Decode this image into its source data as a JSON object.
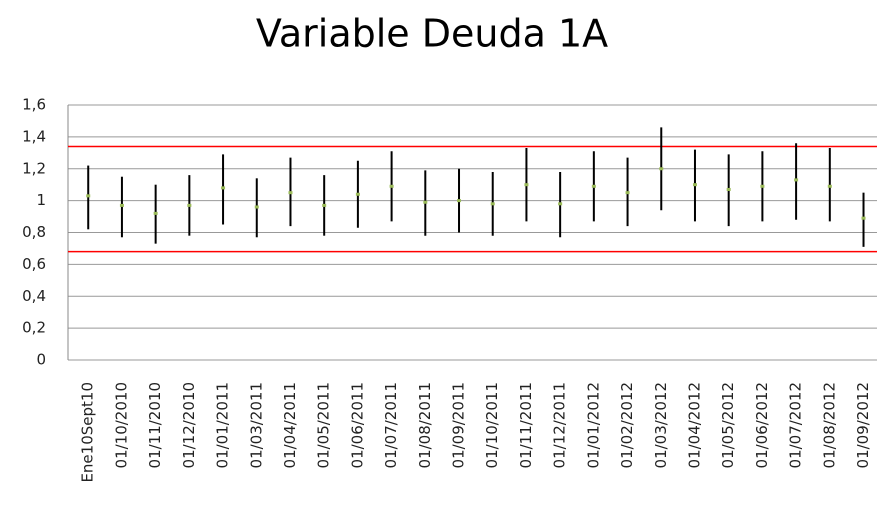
{
  "chart_data": {
    "type": "errorbar",
    "title": "Variable Deuda 1A",
    "categories": [
      "Ene10Sept10",
      "01/10/2010",
      "01/11/2010",
      "01/12/2010",
      "01/01/2011",
      "01/03/2011",
      "01/04/2011",
      "01/05/2011",
      "01/06/2011",
      "01/07/2011",
      "01/08/2011",
      "01/09/2011",
      "01/10/2011",
      "01/11/2011",
      "01/12/2011",
      "01/01/2012",
      "01/02/2012",
      "01/03/2012",
      "01/04/2012",
      "01/05/2012",
      "01/06/2012",
      "01/07/2012",
      "01/08/2012",
      "01/09/2012"
    ],
    "values": [
      1.03,
      0.97,
      0.92,
      0.97,
      1.08,
      0.96,
      1.05,
      0.97,
      1.04,
      1.09,
      0.99,
      1.0,
      0.98,
      1.1,
      0.98,
      1.09,
      1.05,
      1.2,
      1.1,
      1.07,
      1.09,
      1.13,
      1.09,
      0.89
    ],
    "high": [
      1.22,
      1.15,
      1.1,
      1.16,
      1.29,
      1.14,
      1.27,
      1.16,
      1.25,
      1.31,
      1.19,
      1.2,
      1.18,
      1.33,
      1.18,
      1.31,
      1.27,
      1.46,
      1.32,
      1.29,
      1.31,
      1.36,
      1.33,
      1.05
    ],
    "low": [
      0.82,
      0.77,
      0.73,
      0.78,
      0.85,
      0.77,
      0.84,
      0.78,
      0.83,
      0.87,
      0.78,
      0.8,
      0.78,
      0.87,
      0.77,
      0.87,
      0.84,
      0.94,
      0.87,
      0.84,
      0.87,
      0.88,
      0.87,
      0.71
    ],
    "color": "#9bbb59",
    "bar_color": "#000000",
    "reference_lines": [
      1.34,
      0.68
    ],
    "reference_color": "#ff0000",
    "ylim": [
      0,
      1.6
    ],
    "yticks": [
      0,
      {
        "value": 0.2,
        "label": "0,2"
      },
      {
        "value": 0.4,
        "label": "0,4"
      },
      {
        "value": 0.6,
        "label": "0,6"
      },
      {
        "value": 0.8,
        "label": "0,8"
      },
      1,
      {
        "value": 1.2,
        "label": "1,2"
      },
      {
        "value": 1.4,
        "label": "1,4"
      },
      {
        "value": 1.6,
        "label": "1,6"
      }
    ],
    "grid": true
  }
}
